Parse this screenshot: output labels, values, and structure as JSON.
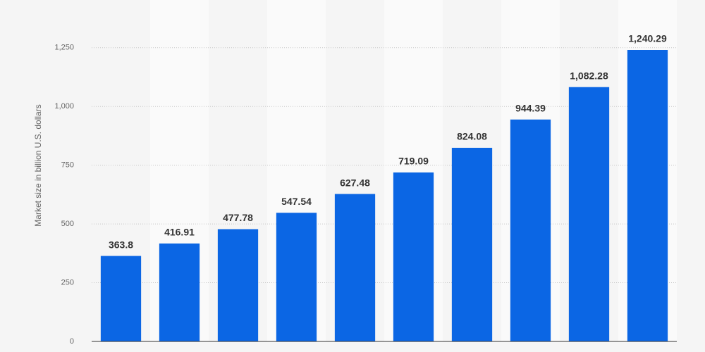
{
  "chart_data": {
    "type": "bar",
    "y_label": "Market size in billion U.S. dollars",
    "categories": [
      null,
      null,
      null,
      null,
      null,
      null,
      null,
      null,
      null,
      null
    ],
    "values": [
      363.8,
      416.91,
      477.78,
      547.54,
      627.48,
      719.09,
      824.08,
      944.39,
      1082.28,
      1240.29
    ],
    "value_labels": [
      "363.8",
      "416.91",
      "477.78",
      "547.54",
      "627.48",
      "719.09",
      "824.08",
      "944.39",
      "1,082.28",
      "1,240.29"
    ],
    "color": "#0b66e4",
    "ylim": [
      0,
      1450
    ],
    "yticks": [
      0,
      250,
      500,
      750,
      {
        "value": 1000,
        "label": "1,000"
      },
      {
        "value": 1250,
        "label": "1,250"
      }
    ],
    "grid": true
  }
}
